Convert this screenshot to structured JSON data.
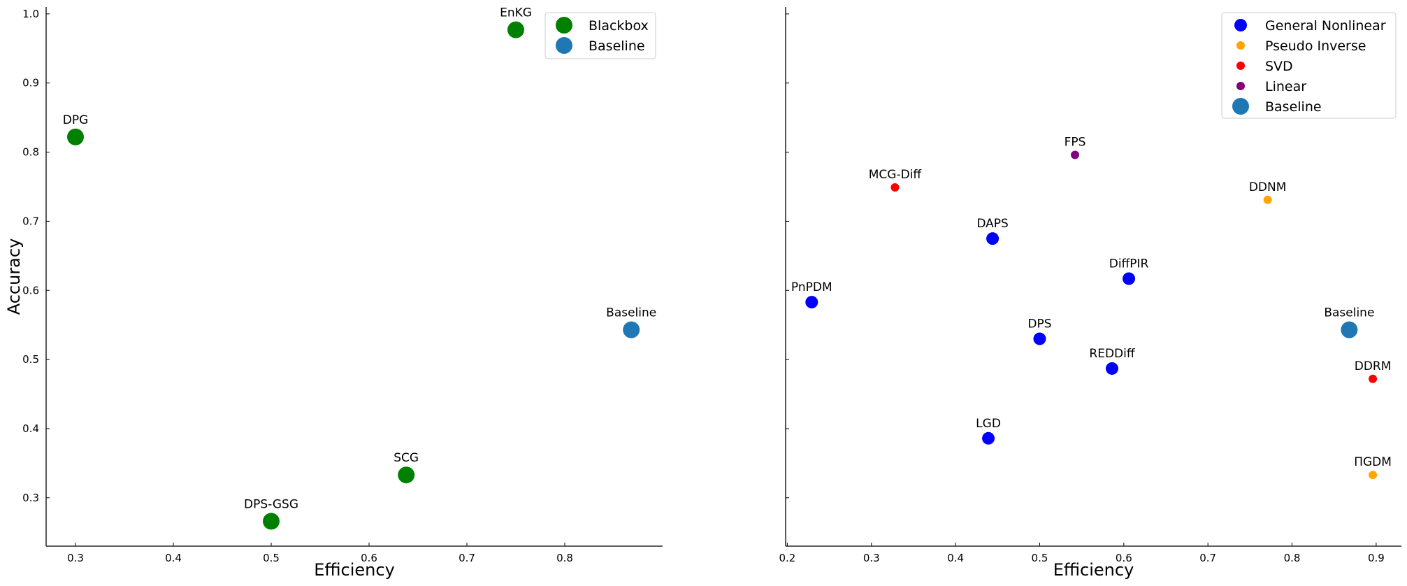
{
  "chart_data": [
    {
      "type": "scatter",
      "title": "",
      "xlabel": "Efficiency",
      "ylabel": "Accuracy",
      "xlim": [
        0.27,
        0.9
      ],
      "ylim": [
        0.23,
        1.01
      ],
      "xticks": [
        "0.3",
        "0.4",
        "0.5",
        "0.6",
        "0.7",
        "0.8"
      ],
      "yticks": [
        "0.3",
        "0.4",
        "0.5",
        "0.6",
        "0.7",
        "0.8",
        "0.9",
        "1.0"
      ],
      "grid": false,
      "legend_position": "top-right",
      "series": [
        {
          "name": "Blackbox",
          "color": "#008000",
          "marker": "large",
          "points": [
            {
              "label": "EnKG",
              "x": 0.75,
              "y": 0.977
            },
            {
              "label": "DPG",
              "x": 0.3,
              "y": 0.822
            },
            {
              "label": "SCG",
              "x": 0.638,
              "y": 0.333
            },
            {
              "label": "DPS-GSG",
              "x": 0.5,
              "y": 0.266
            }
          ]
        },
        {
          "name": "Baseline",
          "color": "#1f77b4",
          "marker": "large",
          "points": [
            {
              "label": "Baseline",
              "x": 0.868,
              "y": 0.543
            }
          ]
        }
      ]
    },
    {
      "type": "scatter",
      "title": "",
      "xlabel": "Efficiency",
      "ylabel": "",
      "xlim": [
        0.198,
        0.93
      ],
      "ylim": [
        0.23,
        1.01
      ],
      "xticks": [
        "0.2",
        "0.3",
        "0.4",
        "0.5",
        "0.6",
        "0.7",
        "0.8",
        "0.9"
      ],
      "grid": false,
      "legend_position": "top-right",
      "series": [
        {
          "name": "General Nonlinear",
          "color": "#0000ff",
          "marker": "medium",
          "points": [
            {
              "label": "PnPDM",
              "x": 0.229,
              "y": 0.583
            },
            {
              "label": "DAPS",
              "x": 0.444,
              "y": 0.675
            },
            {
              "label": "DPS",
              "x": 0.5,
              "y": 0.53
            },
            {
              "label": "DiffPIR",
              "x": 0.606,
              "y": 0.617
            },
            {
              "label": "REDDiff",
              "x": 0.586,
              "y": 0.487
            },
            {
              "label": "LGD",
              "x": 0.439,
              "y": 0.386
            }
          ]
        },
        {
          "name": "Pseudo Inverse",
          "color": "#ffa500",
          "marker": "small",
          "points": [
            {
              "label": "DDNM",
              "x": 0.771,
              "y": 0.731
            },
            {
              "label": "ΠGDM",
              "x": 0.896,
              "y": 0.333
            }
          ]
        },
        {
          "name": "SVD",
          "color": "#ff0000",
          "marker": "small",
          "points": [
            {
              "label": "MCG-Diff",
              "x": 0.328,
              "y": 0.749
            },
            {
              "label": "DDRM",
              "x": 0.896,
              "y": 0.472
            }
          ]
        },
        {
          "name": "Linear",
          "color": "#800080",
          "marker": "small",
          "points": [
            {
              "label": "FPS",
              "x": 0.542,
              "y": 0.796
            }
          ]
        },
        {
          "name": "Baseline",
          "color": "#1f77b4",
          "marker": "large",
          "points": [
            {
              "label": "Baseline",
              "x": 0.868,
              "y": 0.543
            }
          ]
        }
      ]
    }
  ]
}
